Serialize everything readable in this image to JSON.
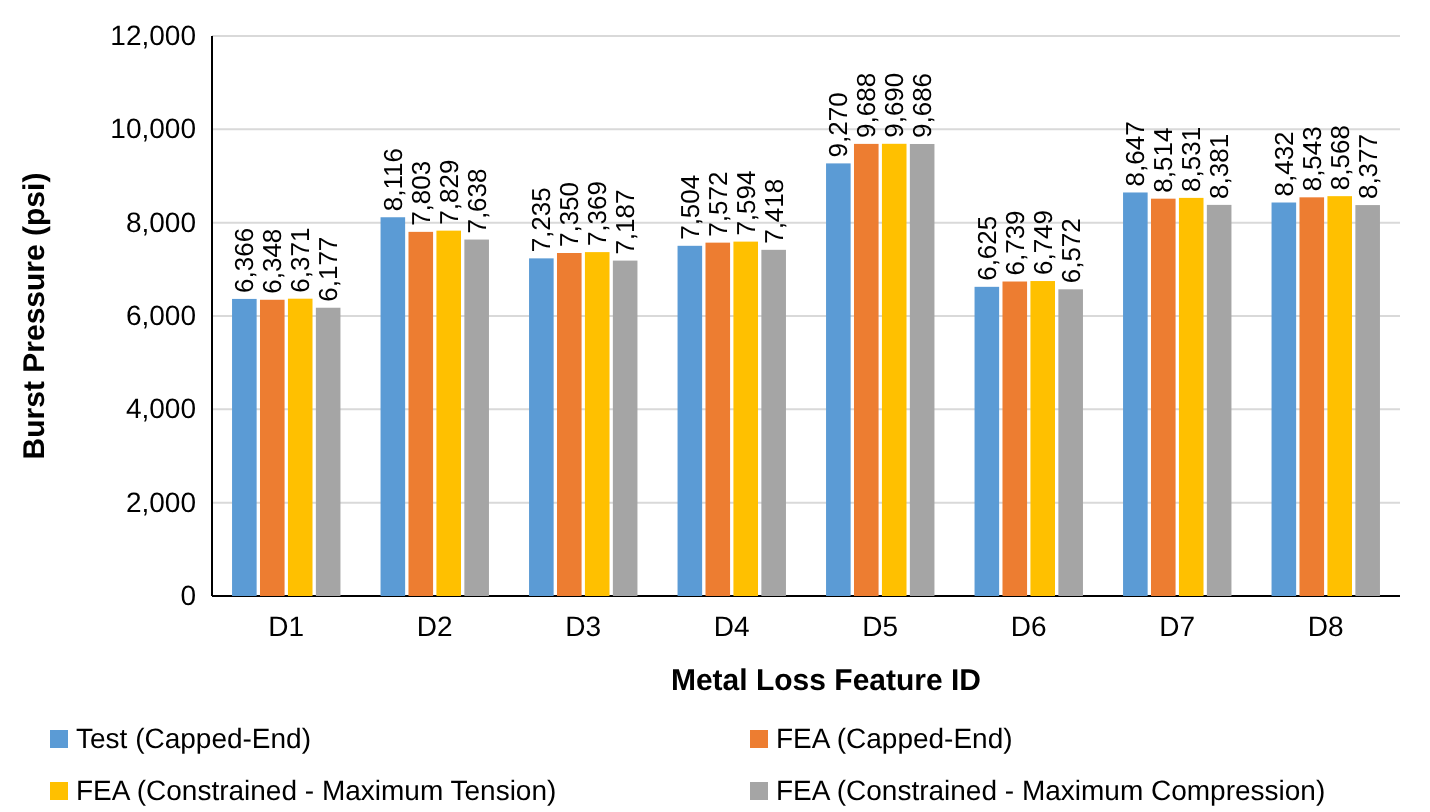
{
  "chart_data": {
    "type": "bar",
    "xlabel": "Metal Loss Feature ID",
    "ylabel": "Burst Pressure (psi)",
    "categories": [
      "D1",
      "D2",
      "D3",
      "D4",
      "D5",
      "D6",
      "D7",
      "D8"
    ],
    "series": [
      {
        "name": "Test (Capped-End)",
        "color": "#5b9bd5",
        "values": [
          6366,
          8116,
          7235,
          7504,
          9270,
          6625,
          8647,
          8432
        ],
        "value_labels": [
          "6,366",
          "8,116",
          "7,235",
          "7,504",
          "9,270",
          "6,625",
          "8,647",
          "8,432"
        ]
      },
      {
        "name": "FEA (Capped-End)",
        "color": "#ed7d31",
        "values": [
          6348,
          7803,
          7350,
          7572,
          9688,
          6739,
          8514,
          8543
        ],
        "value_labels": [
          "6,348",
          "7,803",
          "7,350",
          "7,572",
          "9,688",
          "6,739",
          "8,514",
          "8,543"
        ]
      },
      {
        "name": "FEA (Constrained - Maximum Tension)",
        "color": "#ffc000",
        "values": [
          6371,
          7829,
          7369,
          7594,
          9690,
          6749,
          8531,
          8568
        ],
        "value_labels": [
          "6,371",
          "7,829",
          "7,369",
          "7,594",
          "9,690",
          "6,749",
          "8,531",
          "8,568"
        ]
      },
      {
        "name": "FEA (Constrained - Maximum Compression)",
        "color": "#a5a5a5",
        "values": [
          6177,
          7638,
          7187,
          7418,
          9686,
          6572,
          8381,
          8377
        ],
        "value_labels": [
          "6,177",
          "7,638",
          "7,187",
          "7,418",
          "9,686",
          "6,572",
          "8,381",
          "8,377"
        ]
      }
    ],
    "ylim": [
      0,
      12000
    ],
    "yticks": [
      {
        "value": 0,
        "label": "0"
      },
      {
        "value": 2000,
        "label": "2,000"
      },
      {
        "value": 4000,
        "label": "4,000"
      },
      {
        "value": 6000,
        "label": "6,000"
      },
      {
        "value": 8000,
        "label": "8,000"
      },
      {
        "value": 10000,
        "label": "10,000"
      },
      {
        "value": 12000,
        "label": "12,000"
      }
    ],
    "grid": "y",
    "legend": "bottom"
  }
}
